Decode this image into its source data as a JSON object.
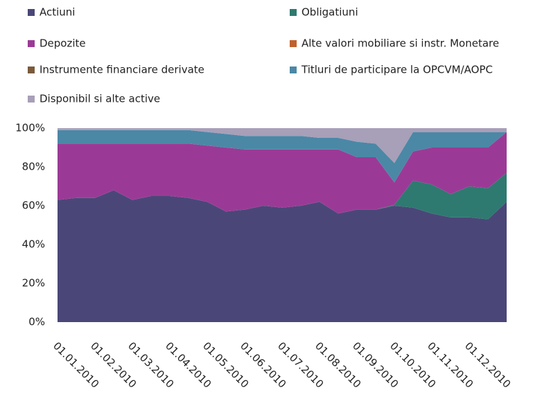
{
  "chart_data": {
    "type": "stacked_area",
    "categories": [
      "01.01.2010",
      null,
      "01.02.2010",
      null,
      "01.03.2010",
      null,
      "01.04.2010",
      null,
      "01.05.2010",
      null,
      "01.06.2010",
      null,
      "01.07.2010",
      null,
      "01.08.2010",
      null,
      "01.09.2010",
      null,
      "01.10.2010",
      null,
      "01.11.2010",
      null,
      "01.12.2010",
      null,
      null
    ],
    "series": [
      {
        "name": "Actiuni",
        "color": "#4a4778",
        "values": [
          63,
          64,
          64,
          68,
          63,
          65,
          65,
          64,
          62,
          57,
          58,
          60,
          59,
          60,
          62,
          56,
          58,
          58,
          60,
          59,
          56,
          54,
          54,
          53,
          62
        ]
      },
      {
        "name": "Obligatiuni",
        "color": "#2e7a70",
        "values": [
          0,
          0,
          0,
          0,
          0,
          0,
          0,
          0,
          0,
          0,
          0,
          0,
          0,
          0,
          0,
          0,
          0,
          0,
          0.5,
          14,
          15,
          12,
          16,
          16,
          15
        ]
      },
      {
        "name": "Depozite",
        "color": "#9b3a96",
        "values": [
          29,
          28,
          28,
          24,
          29,
          27,
          27,
          28,
          29,
          33,
          31,
          29,
          30,
          29,
          27,
          33,
          27,
          27,
          11.5,
          15,
          19,
          24,
          20,
          21,
          21
        ]
      },
      {
        "name": "Alte valori mobiliare si instr. Monetare",
        "color": "#c0612b",
        "values": [
          0,
          0,
          0,
          0,
          0,
          0,
          0,
          0,
          0,
          0,
          0,
          0,
          0,
          0,
          0,
          0,
          0,
          0,
          0,
          0,
          0,
          0,
          0,
          0,
          0
        ]
      },
      {
        "name": "Instrumente financiare derivate",
        "color": "#7a5a3c",
        "values": [
          0,
          0,
          0,
          0,
          0,
          0,
          0,
          0,
          0,
          0,
          0,
          0,
          0,
          0,
          0,
          0,
          0,
          0,
          0,
          0,
          0,
          0,
          0,
          0,
          0
        ]
      },
      {
        "name": "Titluri de participare la OPCVM/AOPC",
        "color": "#4b88a6",
        "values": [
          7,
          7,
          7,
          7,
          7,
          7,
          7,
          7,
          7,
          7,
          7,
          7,
          7,
          7,
          6,
          6,
          8,
          7,
          10,
          10,
          8,
          8,
          8,
          8,
          0
        ]
      },
      {
        "name": "Disponibil si alte active",
        "color": "#a89fb8",
        "values": [
          1,
          1,
          1,
          1,
          1,
          1,
          1,
          1,
          2,
          3,
          4,
          4,
          4,
          4,
          5,
          5,
          7,
          8,
          18,
          2,
          2,
          2,
          2,
          2,
          2
        ]
      }
    ],
    "ylim": [
      0,
      100
    ],
    "yticks": [
      {
        "value": 0,
        "label": "0%"
      },
      {
        "value": 20,
        "label": "20%"
      },
      {
        "value": 40,
        "label": "40%"
      },
      {
        "value": 60,
        "label": "60%"
      },
      {
        "value": 80,
        "label": "80%"
      },
      {
        "value": 100,
        "label": "100%"
      }
    ]
  }
}
